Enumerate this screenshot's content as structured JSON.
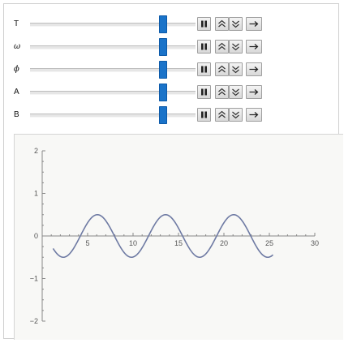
{
  "parameters": [
    {
      "label": "T",
      "italic": false,
      "slider_fraction": 0.82
    },
    {
      "label": "ω",
      "italic": true,
      "slider_fraction": 0.82
    },
    {
      "label": "ϕ",
      "italic": true,
      "slider_fraction": 0.82
    },
    {
      "label": "A",
      "italic": false,
      "slider_fraction": 0.82
    },
    {
      "label": "B",
      "italic": false,
      "slider_fraction": 0.82
    }
  ],
  "buttons": {
    "pause_icon": "pause-icon",
    "faster_icon": "double-chevron-up-icon",
    "slower_icon": "double-chevron-down-icon",
    "direction_icon": "arrow-right-icon"
  },
  "chart_data": {
    "type": "line",
    "title": "",
    "xlabel": "",
    "ylabel": "",
    "xlim": [
      0,
      30
    ],
    "ylim": [
      -2,
      2
    ],
    "xticks": [
      5,
      10,
      15,
      20,
      25,
      30
    ],
    "yticks": [
      -2,
      -1,
      0,
      1,
      2
    ],
    "x_tick_labels": [
      "5",
      "10",
      "15",
      "20",
      "25",
      "30"
    ],
    "y_tick_labels": [
      "−2",
      "−1",
      "0",
      "1",
      "2"
    ],
    "grid": false,
    "series": [
      {
        "color": "#6e7aa3",
        "function": "0.5*sin(2*pi*(x - 4.2)/7.5)",
        "x_range": [
          1.2,
          25.4
        ],
        "amplitude": 0.5,
        "period": 7.5
      }
    ]
  }
}
